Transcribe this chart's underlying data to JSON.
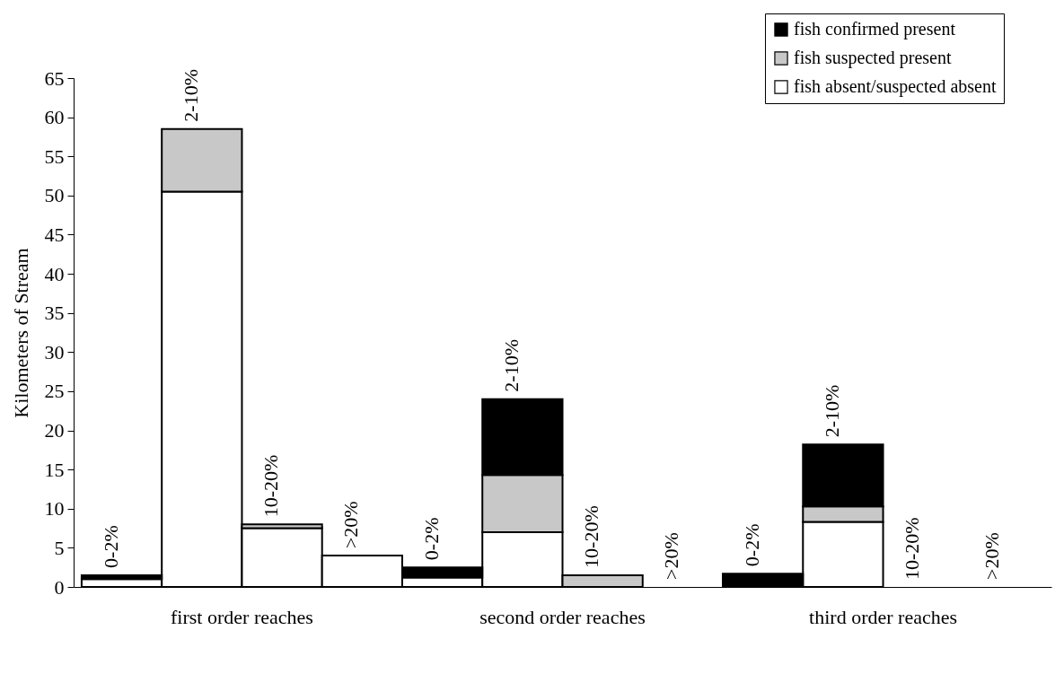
{
  "chart_data": {
    "type": "bar",
    "stacked": true,
    "ylabel": "Kilometers of Stream",
    "categories": [
      "0-2%",
      "2-10%",
      "10-20%",
      ">20%",
      "0-2%",
      "2-10%",
      "10-20%",
      ">20%",
      "0-2%",
      "2-10%",
      "10-20%",
      ">20%"
    ],
    "series": [
      {
        "name": "fish absent/suspected absent",
        "color": "#ffffff",
        "values": [
          1,
          50.5,
          7.5,
          4,
          1.2,
          7,
          0,
          0,
          0,
          8.3,
          0,
          0
        ]
      },
      {
        "name": "fish suspected present",
        "color": "#c8c8c8",
        "values": [
          0,
          8,
          0.5,
          0,
          0,
          7.3,
          1.5,
          0,
          0,
          2,
          0,
          0
        ]
      },
      {
        "name": "fish confirmed present",
        "color": "#000000",
        "values": [
          0.5,
          0,
          0,
          0,
          1.3,
          9.7,
          0,
          0,
          1.7,
          7.9,
          0,
          0
        ]
      }
    ],
    "ylim": [
      0,
      65
    ],
    "yticks": [
      0,
      5,
      10,
      15,
      20,
      25,
      30,
      35,
      40,
      45,
      50,
      55,
      60,
      65
    ],
    "grid": false,
    "legend": "top right",
    "annotations": [
      "first order reaches",
      "second order reaches",
      "third order reaches"
    ]
  }
}
